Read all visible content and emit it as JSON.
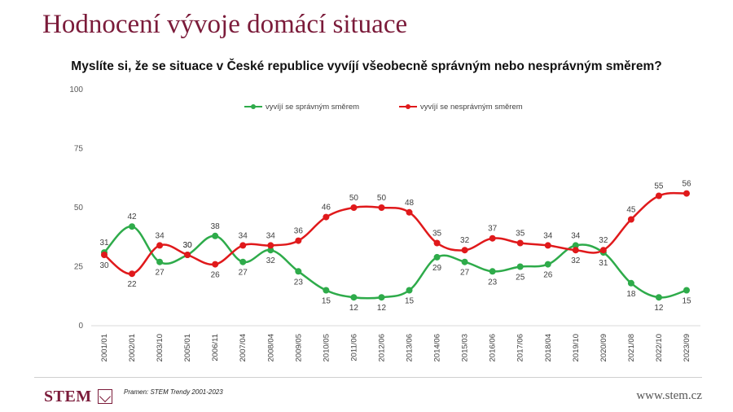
{
  "header": {
    "title": "Hodnocení vývoje domácí situace",
    "subtitle": "Myslíte si, že se situace v České republice vyvíjí všeobecně správným nebo nesprávným směrem?"
  },
  "footer": {
    "logo": "STEM",
    "source": "Pramen: STEM Trendy 2001-2023",
    "website": "www.stem.cz"
  },
  "colors": {
    "green": "#2eab4a",
    "red": "#e0191b",
    "title": "#7b1b3a"
  },
  "chart_data": {
    "type": "line",
    "categories": [
      "2001/01",
      "2002/01",
      "2003/10",
      "2005/01",
      "2006/11",
      "2007/04",
      "2008/04",
      "2009/05",
      "2010/05",
      "2011/06",
      "2012/06",
      "2013/06",
      "2014/06",
      "2015/03",
      "2016/06",
      "2017/06",
      "2018/04",
      "2019/10",
      "2020/09",
      "2021/08",
      "2022/10",
      "2023/09"
    ],
    "series": [
      {
        "name": "vyvíjí se správným směrem",
        "color": "#2eab4a",
        "values": [
          31,
          42,
          27,
          30,
          38,
          27,
          32,
          23,
          15,
          12,
          12,
          15,
          29,
          27,
          23,
          25,
          26,
          34,
          31,
          18,
          12,
          15
        ]
      },
      {
        "name": "vyvíjí se nesprávným směrem",
        "color": "#e0191b",
        "values": [
          30,
          22,
          34,
          30,
          26,
          34,
          34,
          36,
          46,
          50,
          50,
          48,
          35,
          32,
          37,
          35,
          34,
          32,
          32,
          45,
          55,
          56
        ]
      }
    ],
    "yticks": [
      0,
      25,
      50,
      75,
      100
    ],
    "ylim": [
      0,
      100
    ],
    "legend_position": "top-center",
    "grid": false
  }
}
